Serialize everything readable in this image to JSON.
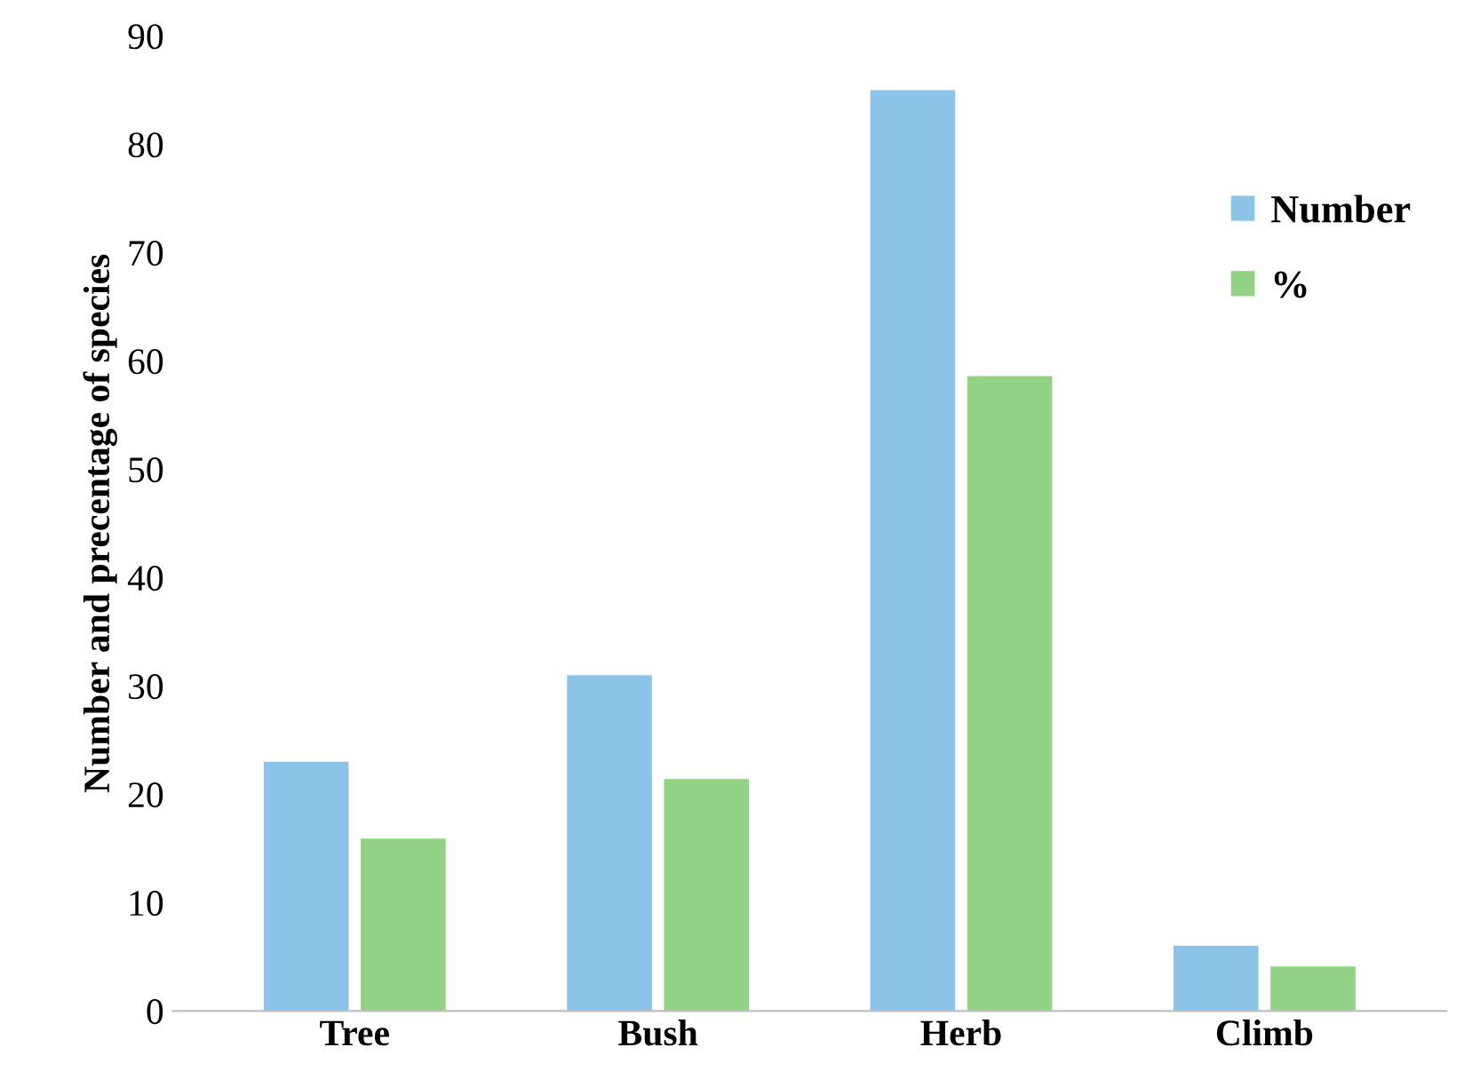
{
  "chart_data": {
    "type": "bar",
    "ylabel": "Number and precentage of species",
    "categories": [
      "Tree",
      "Bush",
      "Herb",
      "Climb"
    ],
    "series": [
      {
        "name": "Number",
        "color": "#8cc3e8",
        "values": [
          23,
          31,
          85,
          6
        ]
      },
      {
        "name": "%",
        "color": "#92d285",
        "values": [
          15.9,
          21.4,
          58.6,
          4.1
        ]
      }
    ],
    "ylim": [
      0,
      90
    ],
    "yticks": [
      0,
      10,
      20,
      30,
      40,
      50,
      60,
      70,
      80,
      90
    ],
    "grid": false,
    "legend": "right"
  }
}
